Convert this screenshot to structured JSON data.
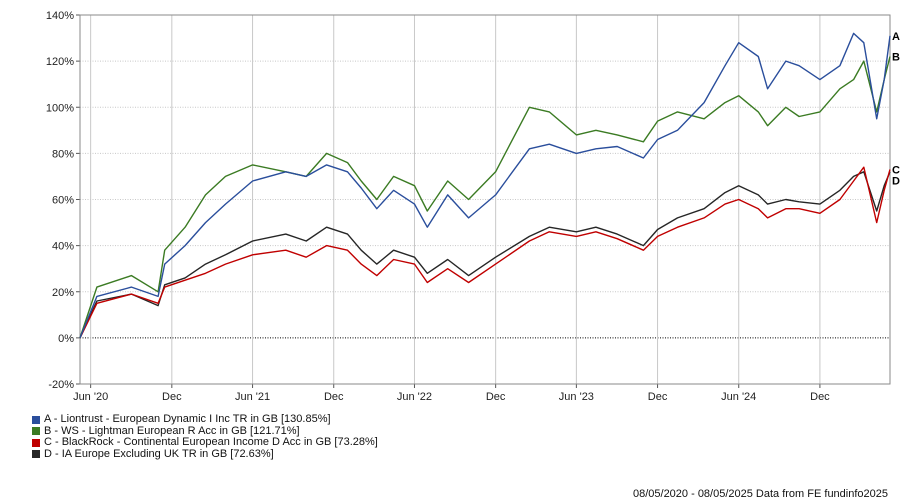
{
  "chart_data": {
    "type": "line",
    "title": "",
    "xlabel": "",
    "ylabel": "",
    "ylim": [
      -20,
      140
    ],
    "yticks": [
      -20,
      0,
      20,
      40,
      60,
      80,
      100,
      120,
      140
    ],
    "ytick_labels": [
      "-20%",
      "0%",
      "20%",
      "40%",
      "60%",
      "80%",
      "100%",
      "120%",
      "140%"
    ],
    "xlim": [
      "2020-05-08",
      "2025-05-08"
    ],
    "xticks": [
      "2020-06-01",
      "2020-12-01",
      "2021-06-01",
      "2021-12-01",
      "2022-06-01",
      "2022-12-01",
      "2023-06-01",
      "2023-12-01",
      "2024-06-01",
      "2024-12-01"
    ],
    "xtick_labels": [
      "Jun '20",
      "Dec",
      "Jun '21",
      "Dec",
      "Jun '22",
      "Dec",
      "Jun '23",
      "Dec",
      "Jun '24",
      "Dec"
    ],
    "grid": true,
    "legend_position": "bottom-left",
    "series": [
      {
        "name": "A - Liontrust - European Dynamic I Inc TR in GB [130.85%]",
        "marker": "A",
        "color": "#2a4e9c",
        "x": [
          "2020-05-08",
          "2020-06-15",
          "2020-09-01",
          "2020-10-31",
          "2020-11-15",
          "2020-12-31",
          "2021-02-15",
          "2021-04-01",
          "2021-06-01",
          "2021-08-15",
          "2021-09-30",
          "2021-11-15",
          "2022-01-01",
          "2022-02-01",
          "2022-03-08",
          "2022-04-15",
          "2022-06-01",
          "2022-06-30",
          "2022-08-15",
          "2022-10-01",
          "2022-12-01",
          "2023-02-15",
          "2023-04-01",
          "2023-06-01",
          "2023-07-15",
          "2023-09-01",
          "2023-10-30",
          "2023-12-01",
          "2024-01-15",
          "2024-03-15",
          "2024-05-01",
          "2024-06-01",
          "2024-07-15",
          "2024-08-05",
          "2024-09-15",
          "2024-10-15",
          "2024-12-01",
          "2025-01-15",
          "2025-02-15",
          "2025-03-10",
          "2025-04-08",
          "2025-04-25",
          "2025-05-08"
        ],
        "y": [
          0,
          18,
          22,
          18,
          32,
          40,
          50,
          58,
          68,
          72,
          70,
          75,
          72,
          65,
          56,
          64,
          58,
          48,
          62,
          52,
          62,
          82,
          84,
          80,
          82,
          83,
          78,
          86,
          90,
          102,
          118,
          128,
          122,
          108,
          120,
          118,
          112,
          118,
          132,
          128,
          95,
          112,
          131
        ]
      },
      {
        "name": "B - WS - Lightman European R Acc in GB [121.71%]",
        "marker": "B",
        "color": "#3b7b23",
        "x": [
          "2020-05-08",
          "2020-06-15",
          "2020-09-01",
          "2020-10-31",
          "2020-11-15",
          "2020-12-31",
          "2021-02-15",
          "2021-04-01",
          "2021-06-01",
          "2021-08-15",
          "2021-09-30",
          "2021-11-15",
          "2022-01-01",
          "2022-02-01",
          "2022-03-08",
          "2022-04-15",
          "2022-06-01",
          "2022-06-30",
          "2022-08-15",
          "2022-10-01",
          "2022-12-01",
          "2023-02-15",
          "2023-04-01",
          "2023-06-01",
          "2023-07-15",
          "2023-09-01",
          "2023-10-30",
          "2023-12-01",
          "2024-01-15",
          "2024-03-15",
          "2024-05-01",
          "2024-06-01",
          "2024-07-15",
          "2024-08-05",
          "2024-09-15",
          "2024-10-15",
          "2024-12-01",
          "2025-01-15",
          "2025-02-15",
          "2025-03-10",
          "2025-04-08",
          "2025-04-25",
          "2025-05-08"
        ],
        "y": [
          0,
          22,
          27,
          20,
          38,
          48,
          62,
          70,
          75,
          72,
          70,
          80,
          76,
          68,
          60,
          70,
          66,
          55,
          68,
          60,
          72,
          100,
          98,
          88,
          90,
          88,
          85,
          94,
          98,
          95,
          102,
          105,
          98,
          92,
          100,
          96,
          98,
          108,
          112,
          120,
          98,
          112,
          122
        ]
      },
      {
        "name": "C - BlackRock - Continental European Income D Acc in GB [73.28%]",
        "marker": "C",
        "color": "#c00000",
        "x": [
          "2020-05-08",
          "2020-06-15",
          "2020-09-01",
          "2020-10-31",
          "2020-11-15",
          "2020-12-31",
          "2021-02-15",
          "2021-04-01",
          "2021-06-01",
          "2021-08-15",
          "2021-09-30",
          "2021-11-15",
          "2022-01-01",
          "2022-02-01",
          "2022-03-08",
          "2022-04-15",
          "2022-06-01",
          "2022-06-30",
          "2022-08-15",
          "2022-10-01",
          "2022-12-01",
          "2023-02-15",
          "2023-04-01",
          "2023-06-01",
          "2023-07-15",
          "2023-09-01",
          "2023-10-30",
          "2023-12-01",
          "2024-01-15",
          "2024-03-15",
          "2024-05-01",
          "2024-06-01",
          "2024-07-15",
          "2024-08-05",
          "2024-09-15",
          "2024-10-15",
          "2024-12-01",
          "2025-01-15",
          "2025-02-15",
          "2025-03-10",
          "2025-04-08",
          "2025-04-25",
          "2025-05-08"
        ],
        "y": [
          0,
          15,
          19,
          15,
          22,
          25,
          28,
          32,
          36,
          38,
          35,
          40,
          38,
          32,
          27,
          34,
          32,
          24,
          30,
          24,
          32,
          42,
          46,
          44,
          46,
          43,
          38,
          44,
          48,
          52,
          58,
          60,
          56,
          52,
          56,
          56,
          54,
          60,
          68,
          74,
          50,
          64,
          73
        ]
      },
      {
        "name": "D - IA Europe Excluding UK TR in GB [72.63%]",
        "marker": "D",
        "color": "#262626",
        "x": [
          "2020-05-08",
          "2020-06-15",
          "2020-09-01",
          "2020-10-31",
          "2020-11-15",
          "2020-12-31",
          "2021-02-15",
          "2021-04-01",
          "2021-06-01",
          "2021-08-15",
          "2021-09-30",
          "2021-11-15",
          "2022-01-01",
          "2022-02-01",
          "2022-03-08",
          "2022-04-15",
          "2022-06-01",
          "2022-06-30",
          "2022-08-15",
          "2022-10-01",
          "2022-12-01",
          "2023-02-15",
          "2023-04-01",
          "2023-06-01",
          "2023-07-15",
          "2023-09-01",
          "2023-10-30",
          "2023-12-01",
          "2024-01-15",
          "2024-03-15",
          "2024-05-01",
          "2024-06-01",
          "2024-07-15",
          "2024-08-05",
          "2024-09-15",
          "2024-10-15",
          "2024-12-01",
          "2025-01-15",
          "2025-02-15",
          "2025-03-10",
          "2025-04-08",
          "2025-04-25",
          "2025-05-08"
        ],
        "y": [
          0,
          16,
          19,
          14,
          23,
          26,
          32,
          36,
          42,
          45,
          42,
          48,
          45,
          38,
          32,
          38,
          35,
          28,
          34,
          27,
          35,
          44,
          48,
          46,
          48,
          45,
          40,
          47,
          52,
          56,
          63,
          66,
          62,
          58,
          60,
          59,
          58,
          64,
          70,
          72,
          55,
          66,
          72
        ]
      }
    ]
  },
  "footer": {
    "text": "08/05/2020 - 08/05/2025 Data from FE fundinfo2025"
  }
}
